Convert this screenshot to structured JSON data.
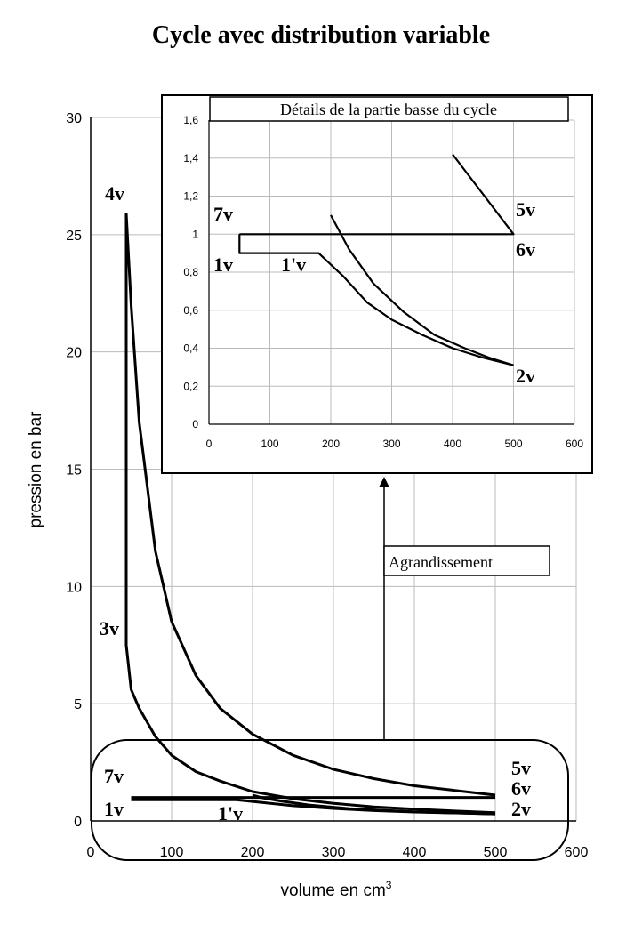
{
  "title": "Cycle avec distribution variable",
  "chart_data": [
    {
      "type": "line",
      "xlabel": "volume en cm",
      "xlabel_sup": "3",
      "ylabel": "pression en bar",
      "xlim": [
        0,
        600
      ],
      "ylim": [
        0,
        30
      ],
      "xticks": [
        0,
        100,
        200,
        300,
        400,
        500,
        600
      ],
      "yticks": [
        0,
        5,
        10,
        15,
        20,
        25,
        30
      ],
      "grid": true,
      "series": [
        {
          "points": [
            [
              50,
              1
            ],
            [
              500,
              1
            ]
          ]
        },
        {
          "points": [
            [
              50,
              0.9
            ],
            [
              180,
              0.9
            ],
            [
              250,
              0.65
            ],
            [
              300,
              0.53
            ],
            [
              350,
              0.44
            ],
            [
              400,
              0.38
            ],
            [
              450,
              0.34
            ],
            [
              500,
              0.3
            ]
          ]
        },
        {
          "points": [
            [
              500,
              0.3
            ],
            [
              400,
              0.39
            ],
            [
              320,
              0.52
            ],
            [
              270,
              0.68
            ],
            [
              235,
              0.85
            ],
            [
              210,
              1.0
            ],
            [
              200,
              1.1
            ]
          ]
        },
        {
          "points": [
            [
              44,
              25.9
            ],
            [
              44,
              20
            ],
            [
              44,
              7.5
            ],
            [
              50,
              5.6
            ],
            [
              60,
              4.8
            ],
            [
              80,
              3.6
            ],
            [
              100,
              2.8
            ],
            [
              130,
              2.1
            ],
            [
              160,
              1.7
            ],
            [
              200,
              1.25
            ],
            [
              250,
              0.95
            ],
            [
              300,
              0.75
            ],
            [
              350,
              0.6
            ],
            [
              400,
              0.5
            ],
            [
              450,
              0.42
            ],
            [
              500,
              0.35
            ]
          ]
        },
        {
          "points": [
            [
              44,
              25.9
            ],
            [
              50,
              22
            ],
            [
              60,
              17
            ],
            [
              80,
              11.5
            ],
            [
              100,
              8.5
            ],
            [
              130,
              6.2
            ],
            [
              160,
              4.8
            ],
            [
              200,
              3.7
            ],
            [
              250,
              2.8
            ],
            [
              300,
              2.2
            ],
            [
              350,
              1.8
            ],
            [
              400,
              1.5
            ],
            [
              450,
              1.3
            ],
            [
              500,
              1.1
            ]
          ]
        }
      ],
      "annotations": [
        "4v",
        "3v",
        "7v",
        "1v",
        "1'v",
        "5v",
        "6v",
        "2v"
      ],
      "callout": "Agrandissement"
    },
    {
      "type": "line",
      "title": "Détails de la partie basse du cycle",
      "xlim": [
        0,
        600
      ],
      "ylim": [
        0,
        1.6
      ],
      "xticks": [
        0,
        100,
        200,
        300,
        400,
        500,
        600
      ],
      "yticks": [
        "0",
        "0,2",
        "0,4",
        "0,6",
        "0,8",
        "1",
        "1,2",
        "1,4",
        "1,6"
      ],
      "grid": true,
      "series": [
        {
          "points": [
            [
              50,
              1
            ],
            [
              500,
              1
            ],
            [
              400,
              1.42
            ]
          ]
        },
        {
          "points": [
            [
              50,
              1
            ],
            [
              50,
              0.9
            ],
            [
              180,
              0.9
            ],
            [
              220,
              0.78
            ],
            [
              260,
              0.64
            ],
            [
              300,
              0.55
            ],
            [
              350,
              0.47
            ],
            [
              400,
              0.4
            ],
            [
              450,
              0.35
            ],
            [
              500,
              0.31
            ]
          ]
        },
        {
          "points": [
            [
              200,
              1.1
            ],
            [
              230,
              0.92
            ],
            [
              270,
              0.74
            ],
            [
              320,
              0.59
            ],
            [
              370,
              0.47
            ],
            [
              420,
              0.4
            ],
            [
              460,
              0.35
            ],
            [
              500,
              0.31
            ]
          ]
        }
      ],
      "annotations": [
        "7v",
        "1v",
        "1'v",
        "5v",
        "6v",
        "2v"
      ]
    }
  ]
}
